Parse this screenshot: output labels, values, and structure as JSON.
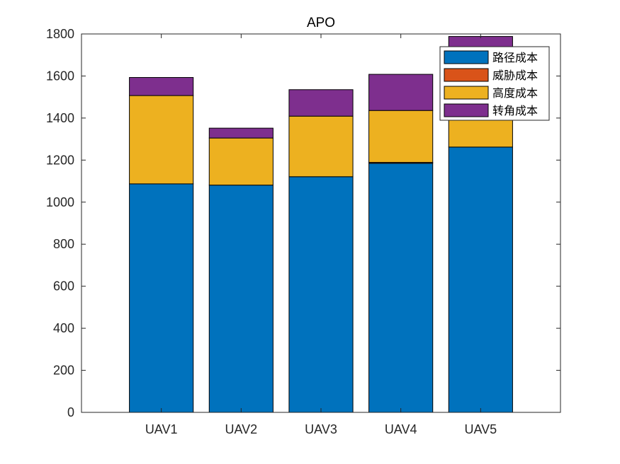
{
  "chart_data": {
    "type": "bar",
    "stacked": true,
    "title": "APO",
    "xlabel": "",
    "ylabel": "",
    "categories": [
      "UAV1",
      "UAV2",
      "UAV3",
      "UAV4",
      "UAV5"
    ],
    "ylim": [
      0,
      1800
    ],
    "yticks": [
      0,
      200,
      400,
      600,
      800,
      1000,
      1200,
      1400,
      1600,
      1800
    ],
    "xlim": [
      0,
      6
    ],
    "grid": false,
    "legend_position": "top-right",
    "series": [
      {
        "name": "路径成本",
        "color": "#0072BD",
        "values": [
          1087,
          1081,
          1121,
          1185,
          1262
        ]
      },
      {
        "name": "威胁成本",
        "color": "#D95319",
        "values": [
          0,
          0,
          0,
          4,
          0
        ]
      },
      {
        "name": "高度成本",
        "color": "#EDB120",
        "values": [
          420,
          224,
          288,
          247,
          183
        ]
      },
      {
        "name": "转角成本",
        "color": "#7E2F8E",
        "values": [
          86,
          47,
          126,
          172,
          343
        ]
      }
    ]
  }
}
